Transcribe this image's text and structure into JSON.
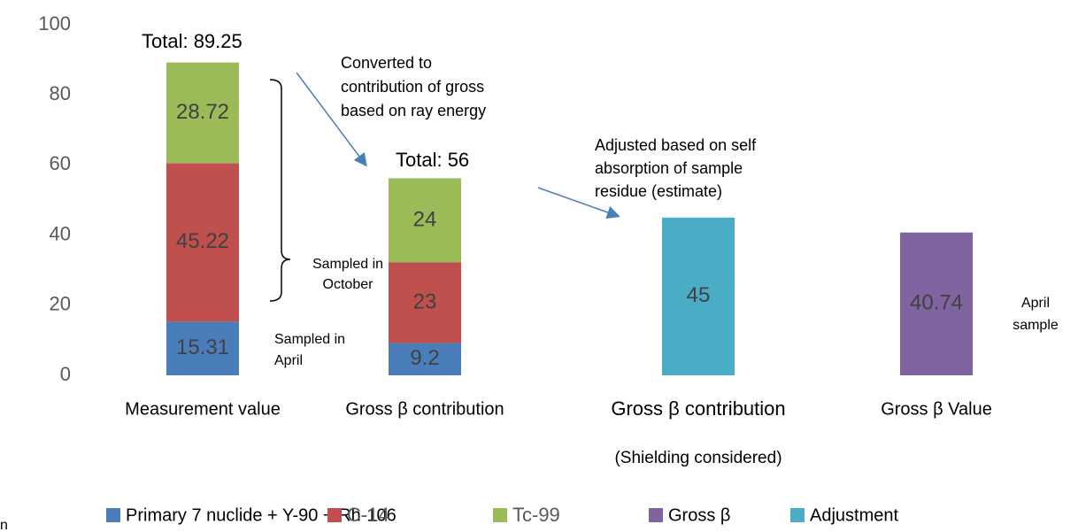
{
  "chart_data": {
    "type": "stacked_bar",
    "categories": [
      "Measurement value",
      "Gross β contribution",
      "Gross β contribution",
      "Gross β Value"
    ],
    "series": [
      {
        "name": "Primary 7 nuclide + Y-90 + Rh-106",
        "color": "#4a7ebb",
        "values": [
          15.31,
          9.2,
          null,
          null
        ]
      },
      {
        "name": "C-14",
        "color": "#c0504d",
        "values": [
          45.22,
          23,
          null,
          null
        ]
      },
      {
        "name": "Tc-99",
        "color": "#9bbb59",
        "values": [
          28.72,
          24,
          null,
          null
        ]
      },
      {
        "name": "Gross β",
        "color": "#8064a2",
        "values": [
          null,
          null,
          null,
          40.74
        ]
      },
      {
        "name": "Adjustment",
        "color": "#4bacc6",
        "values": [
          null,
          null,
          45,
          null
        ]
      }
    ],
    "ylim": [
      0,
      100
    ],
    "yticks": [
      0,
      20,
      40,
      60,
      80,
      100
    ],
    "grid": false,
    "legend": "bottom",
    "annotations": [
      [
        "Total: 89.25"
      ],
      [
        "Converted to",
        "contribution of gross",
        "based on    ray energy"
      ],
      [
        "Total: 56"
      ],
      [
        "Adjusted based on self",
        "absorption of sample",
        "residue (estimate)"
      ],
      [
        "Sampled in",
        "October"
      ],
      [
        "Sampled in",
        "April"
      ],
      [
        "April",
        "sample"
      ],
      [
        "(Shielding considered)"
      ],
      [
        "n"
      ]
    ]
  }
}
